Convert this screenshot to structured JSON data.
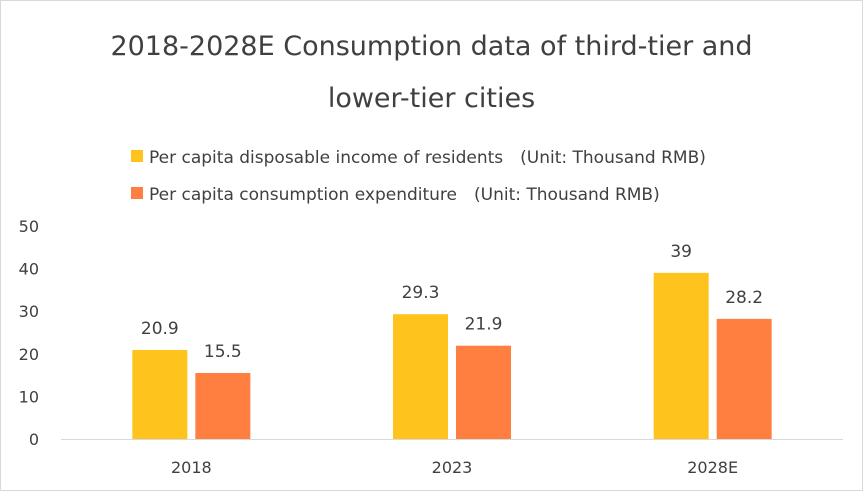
{
  "chart_data": {
    "type": "bar",
    "title": "2018-2028E Consumption data of third-tier and lower-tier cities",
    "title_lines": [
      "2018-2028E Consumption data of third-tier and",
      "lower-tier cities"
    ],
    "categories": [
      "2018",
      "2023",
      "2028E"
    ],
    "series": [
      {
        "name": "Per capita disposable income of residents　(Unit: Thousand RMB)",
        "values": [
          20.9,
          29.3,
          39
        ],
        "labels": [
          "20.9",
          "29.3",
          "39"
        ],
        "color": "#FFC31D"
      },
      {
        "name": "Per capita consumption expenditure　(Unit: Thousand RMB)",
        "values": [
          15.5,
          21.9,
          28.2
        ],
        "labels": [
          "15.5",
          "21.9",
          "28.2"
        ],
        "color": "#FF7F41"
      }
    ],
    "ylim": [
      0,
      50
    ],
    "yticks": [
      "0",
      "10",
      "20",
      "30",
      "40",
      "50"
    ],
    "grid": false,
    "legend_position": "top-left",
    "xlabel": "",
    "ylabel": ""
  }
}
